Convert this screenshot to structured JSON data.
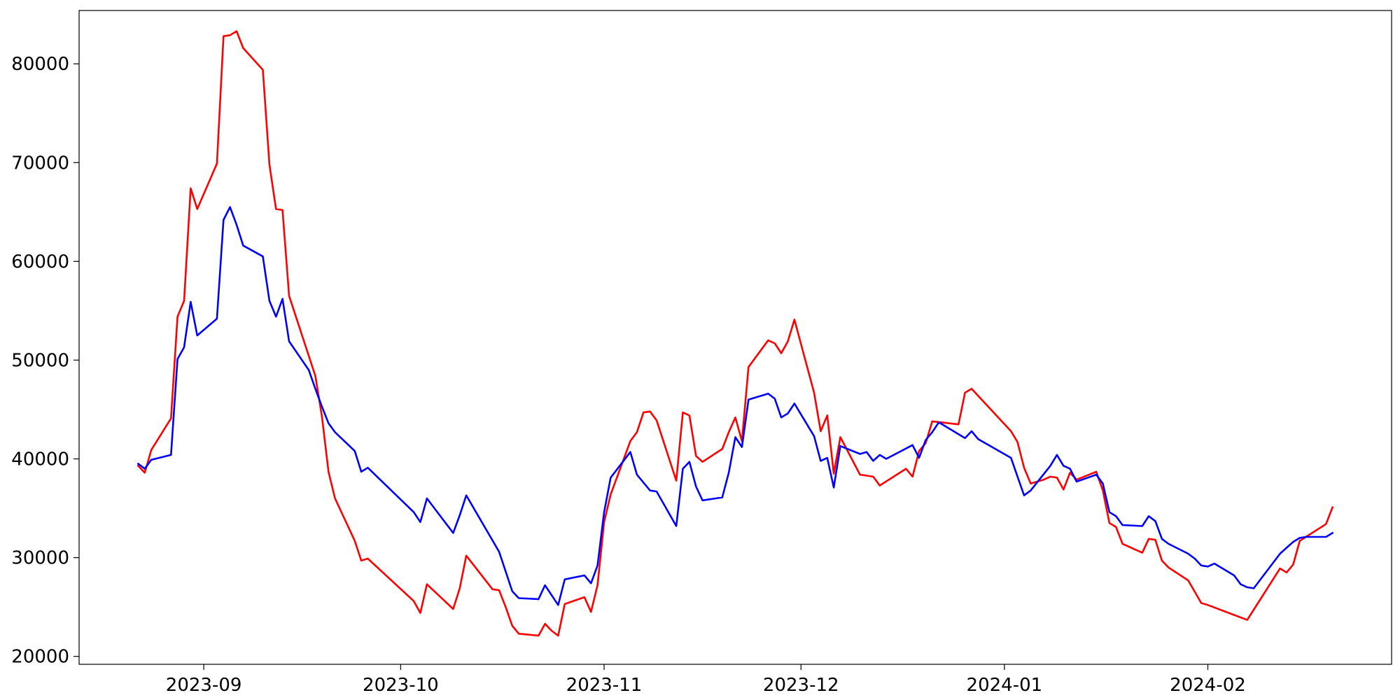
{
  "chart_data": {
    "type": "line",
    "title": "",
    "xlabel": "",
    "ylabel": "",
    "xlim": [
      "2023-08-13",
      "2024-02-29"
    ],
    "ylim": [
      19200,
      85400
    ],
    "grid": false,
    "legend": "none",
    "x_ticks": [
      {
        "date": "2023-09-01",
        "label": "2023-09"
      },
      {
        "date": "2023-10-01",
        "label": "2023-10"
      },
      {
        "date": "2023-11-01",
        "label": "2023-11"
      },
      {
        "date": "2023-12-01",
        "label": "2023-12"
      },
      {
        "date": "2024-01-01",
        "label": "2024-01"
      },
      {
        "date": "2024-02-01",
        "label": "2024-02"
      }
    ],
    "y_ticks": [
      {
        "value": 20000,
        "label": "20000"
      },
      {
        "value": 30000,
        "label": "30000"
      },
      {
        "value": 40000,
        "label": "40000"
      },
      {
        "value": 50000,
        "label": "50000"
      },
      {
        "value": 60000,
        "label": "60000"
      },
      {
        "value": 70000,
        "label": "70000"
      },
      {
        "value": 80000,
        "label": "80000"
      }
    ],
    "series": [
      {
        "color": "#ff0000",
        "points": [
          [
            "2023-08-22",
            39300
          ],
          [
            "2023-08-23",
            38600
          ],
          [
            "2023-08-24",
            40900
          ],
          [
            "2023-08-27",
            44100
          ],
          [
            "2023-08-28",
            54400
          ],
          [
            "2023-08-29",
            56000
          ],
          [
            "2023-08-30",
            67400
          ],
          [
            "2023-08-31",
            65300
          ],
          [
            "2023-09-03",
            69900
          ],
          [
            "2023-09-04",
            82800
          ],
          [
            "2023-09-05",
            82900
          ],
          [
            "2023-09-06",
            83300
          ],
          [
            "2023-09-07",
            81600
          ],
          [
            "2023-09-10",
            79400
          ],
          [
            "2023-09-11",
            69800
          ],
          [
            "2023-09-12",
            65300
          ],
          [
            "2023-09-13",
            65200
          ],
          [
            "2023-09-14",
            56500
          ],
          [
            "2023-09-18",
            48400
          ],
          [
            "2023-09-19",
            44300
          ],
          [
            "2023-09-20",
            38700
          ],
          [
            "2023-09-21",
            36000
          ],
          [
            "2023-09-24",
            31700
          ],
          [
            "2023-09-25",
            29700
          ],
          [
            "2023-09-26",
            29900
          ],
          [
            "2023-10-03",
            25600
          ],
          [
            "2023-10-04",
            24400
          ],
          [
            "2023-10-05",
            27300
          ],
          [
            "2023-10-09",
            24800
          ],
          [
            "2023-10-10",
            26900
          ],
          [
            "2023-10-11",
            30200
          ],
          [
            "2023-10-15",
            26800
          ],
          [
            "2023-10-16",
            26700
          ],
          [
            "2023-10-17",
            25000
          ],
          [
            "2023-10-18",
            23100
          ],
          [
            "2023-10-19",
            22300
          ],
          [
            "2023-10-22",
            22100
          ],
          [
            "2023-10-23",
            23300
          ],
          [
            "2023-10-24",
            22600
          ],
          [
            "2023-10-25",
            22100
          ],
          [
            "2023-10-26",
            25300
          ],
          [
            "2023-10-29",
            26000
          ],
          [
            "2023-10-30",
            24500
          ],
          [
            "2023-10-31",
            27200
          ],
          [
            "2023-11-01",
            33600
          ],
          [
            "2023-11-02",
            36400
          ],
          [
            "2023-11-05",
            41800
          ],
          [
            "2023-11-06",
            42700
          ],
          [
            "2023-11-07",
            44700
          ],
          [
            "2023-11-08",
            44800
          ],
          [
            "2023-11-09",
            43900
          ],
          [
            "2023-11-12",
            37800
          ],
          [
            "2023-11-13",
            44700
          ],
          [
            "2023-11-14",
            44400
          ],
          [
            "2023-11-15",
            40300
          ],
          [
            "2023-11-16",
            39700
          ],
          [
            "2023-11-19",
            41000
          ],
          [
            "2023-11-20",
            42700
          ],
          [
            "2023-11-21",
            44200
          ],
          [
            "2023-11-22",
            41800
          ],
          [
            "2023-11-23",
            49300
          ],
          [
            "2023-11-26",
            52000
          ],
          [
            "2023-11-27",
            51700
          ],
          [
            "2023-11-28",
            50700
          ],
          [
            "2023-11-29",
            51900
          ],
          [
            "2023-11-30",
            54100
          ],
          [
            "2023-12-03",
            46700
          ],
          [
            "2023-12-04",
            42800
          ],
          [
            "2023-12-05",
            44400
          ],
          [
            "2023-12-06",
            38500
          ],
          [
            "2023-12-07",
            42200
          ],
          [
            "2023-12-10",
            38400
          ],
          [
            "2023-12-11",
            38300
          ],
          [
            "2023-12-12",
            38200
          ],
          [
            "2023-12-13",
            37300
          ],
          [
            "2023-12-17",
            39000
          ],
          [
            "2023-12-18",
            38200
          ],
          [
            "2023-12-19",
            40800
          ],
          [
            "2023-12-20",
            41600
          ],
          [
            "2023-12-21",
            43800
          ],
          [
            "2023-12-25",
            43500
          ],
          [
            "2023-12-26",
            46700
          ],
          [
            "2023-12-27",
            47100
          ],
          [
            "2024-01-02",
            42800
          ],
          [
            "2024-01-03",
            41700
          ],
          [
            "2024-01-04",
            39100
          ],
          [
            "2024-01-05",
            37500
          ],
          [
            "2024-01-07",
            37900
          ],
          [
            "2024-01-08",
            38200
          ],
          [
            "2024-01-09",
            38100
          ],
          [
            "2024-01-10",
            36900
          ],
          [
            "2024-01-11",
            38600
          ],
          [
            "2024-01-12",
            37900
          ],
          [
            "2024-01-15",
            38700
          ],
          [
            "2024-01-16",
            36800
          ],
          [
            "2024-01-17",
            33500
          ],
          [
            "2024-01-18",
            33100
          ],
          [
            "2024-01-19",
            31400
          ],
          [
            "2024-01-22",
            30500
          ],
          [
            "2024-01-23",
            31900
          ],
          [
            "2024-01-24",
            31800
          ],
          [
            "2024-01-25",
            29700
          ],
          [
            "2024-01-26",
            29000
          ],
          [
            "2024-01-29",
            27700
          ],
          [
            "2024-01-31",
            25400
          ],
          [
            "2024-02-01",
            25200
          ],
          [
            "2024-02-05",
            24200
          ],
          [
            "2024-02-07",
            23700
          ],
          [
            "2024-02-12",
            28900
          ],
          [
            "2024-02-13",
            28500
          ],
          [
            "2024-02-14",
            29300
          ],
          [
            "2024-02-15",
            31700
          ],
          [
            "2024-02-19",
            33400
          ],
          [
            "2024-02-20",
            35100
          ]
        ]
      },
      {
        "color": "#0000ff",
        "points": [
          [
            "2023-08-22",
            39500
          ],
          [
            "2023-08-23",
            39000
          ],
          [
            "2023-08-24",
            39900
          ],
          [
            "2023-08-27",
            40400
          ],
          [
            "2023-08-28",
            50100
          ],
          [
            "2023-08-29",
            51300
          ],
          [
            "2023-08-30",
            55900
          ],
          [
            "2023-08-31",
            52500
          ],
          [
            "2023-09-03",
            54200
          ],
          [
            "2023-09-04",
            64200
          ],
          [
            "2023-09-05",
            65500
          ],
          [
            "2023-09-06",
            63700
          ],
          [
            "2023-09-07",
            61600
          ],
          [
            "2023-09-10",
            60500
          ],
          [
            "2023-09-11",
            56000
          ],
          [
            "2023-09-12",
            54400
          ],
          [
            "2023-09-13",
            56200
          ],
          [
            "2023-09-14",
            51900
          ],
          [
            "2023-09-17",
            49000
          ],
          [
            "2023-09-18",
            47100
          ],
          [
            "2023-09-19",
            45300
          ],
          [
            "2023-09-20",
            43600
          ],
          [
            "2023-09-21",
            42700
          ],
          [
            "2023-09-24",
            40800
          ],
          [
            "2023-09-25",
            38700
          ],
          [
            "2023-09-26",
            39100
          ],
          [
            "2023-10-03",
            34600
          ],
          [
            "2023-10-04",
            33600
          ],
          [
            "2023-10-05",
            36000
          ],
          [
            "2023-10-09",
            32500
          ],
          [
            "2023-10-10",
            34300
          ],
          [
            "2023-10-11",
            36300
          ],
          [
            "2023-10-16",
            30600
          ],
          [
            "2023-10-18",
            26600
          ],
          [
            "2023-10-19",
            25900
          ],
          [
            "2023-10-22",
            25800
          ],
          [
            "2023-10-23",
            27200
          ],
          [
            "2023-10-25",
            25200
          ],
          [
            "2023-10-26",
            27800
          ],
          [
            "2023-10-29",
            28200
          ],
          [
            "2023-10-30",
            27400
          ],
          [
            "2023-10-31",
            29200
          ],
          [
            "2023-11-01",
            34600
          ],
          [
            "2023-11-02",
            38100
          ],
          [
            "2023-11-05",
            40700
          ],
          [
            "2023-11-06",
            38400
          ],
          [
            "2023-11-08",
            36800
          ],
          [
            "2023-11-09",
            36700
          ],
          [
            "2023-11-12",
            33200
          ],
          [
            "2023-11-13",
            39000
          ],
          [
            "2023-11-14",
            39700
          ],
          [
            "2023-11-15",
            37200
          ],
          [
            "2023-11-16",
            35800
          ],
          [
            "2023-11-19",
            36100
          ],
          [
            "2023-11-20",
            38600
          ],
          [
            "2023-11-21",
            42200
          ],
          [
            "2023-11-22",
            41200
          ],
          [
            "2023-11-23",
            46000
          ],
          [
            "2023-11-26",
            46600
          ],
          [
            "2023-11-27",
            46100
          ],
          [
            "2023-11-28",
            44200
          ],
          [
            "2023-11-29",
            44600
          ],
          [
            "2023-11-30",
            45600
          ],
          [
            "2023-12-03",
            42300
          ],
          [
            "2023-12-04",
            39800
          ],
          [
            "2023-12-05",
            40100
          ],
          [
            "2023-12-06",
            37100
          ],
          [
            "2023-12-07",
            41300
          ],
          [
            "2023-12-10",
            40500
          ],
          [
            "2023-12-11",
            40700
          ],
          [
            "2023-12-12",
            39800
          ],
          [
            "2023-12-13",
            40400
          ],
          [
            "2023-12-14",
            40000
          ],
          [
            "2023-12-18",
            41400
          ],
          [
            "2023-12-19",
            40100
          ],
          [
            "2023-12-20",
            41900
          ],
          [
            "2023-12-21",
            42700
          ],
          [
            "2023-12-22",
            43700
          ],
          [
            "2023-12-26",
            42100
          ],
          [
            "2023-12-27",
            42800
          ],
          [
            "2023-12-28",
            42000
          ],
          [
            "2024-01-02",
            40100
          ],
          [
            "2024-01-03",
            38200
          ],
          [
            "2024-01-04",
            36300
          ],
          [
            "2024-01-05",
            36800
          ],
          [
            "2024-01-08",
            39300
          ],
          [
            "2024-01-09",
            40400
          ],
          [
            "2024-01-10",
            39300
          ],
          [
            "2024-01-11",
            39000
          ],
          [
            "2024-01-12",
            37700
          ],
          [
            "2024-01-15",
            38400
          ],
          [
            "2024-01-16",
            37500
          ],
          [
            "2024-01-17",
            34600
          ],
          [
            "2024-01-18",
            34200
          ],
          [
            "2024-01-19",
            33300
          ],
          [
            "2024-01-22",
            33200
          ],
          [
            "2024-01-23",
            34200
          ],
          [
            "2024-01-24",
            33700
          ],
          [
            "2024-01-25",
            31900
          ],
          [
            "2024-01-26",
            31400
          ],
          [
            "2024-01-29",
            30400
          ],
          [
            "2024-01-30",
            29900
          ],
          [
            "2024-01-31",
            29200
          ],
          [
            "2024-02-01",
            29100
          ],
          [
            "2024-02-02",
            29400
          ],
          [
            "2024-02-05",
            28200
          ],
          [
            "2024-02-06",
            27300
          ],
          [
            "2024-02-07",
            27000
          ],
          [
            "2024-02-08",
            26900
          ],
          [
            "2024-02-12",
            30400
          ],
          [
            "2024-02-13",
            31000
          ],
          [
            "2024-02-14",
            31600
          ],
          [
            "2024-02-15",
            32000
          ],
          [
            "2024-02-16",
            32100
          ],
          [
            "2024-02-19",
            32100
          ],
          [
            "2024-02-20",
            32500
          ]
        ]
      }
    ]
  }
}
